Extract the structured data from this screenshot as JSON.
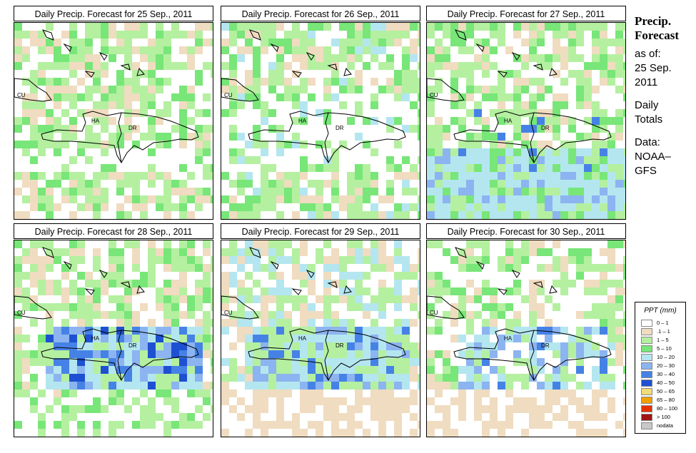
{
  "panels": [
    {
      "title": "Daily Precip. Forecast for  25 Sep., 2011",
      "seed": 11,
      "profile": "a"
    },
    {
      "title": "Daily Precip. Forecast for  26 Sep., 2011",
      "seed": 23,
      "profile": "b"
    },
    {
      "title": "Daily Precip. Forecast for  27 Sep., 2011",
      "seed": 37,
      "profile": "c"
    },
    {
      "title": "Daily Precip. Forecast for  28 Sep., 2011",
      "seed": 41,
      "profile": "d"
    },
    {
      "title": "Daily Precip. Forecast for  29 Sep., 2011",
      "seed": 53,
      "profile": "e"
    },
    {
      "title": "Daily Precip. Forecast for  30 Sep., 2011",
      "seed": 67,
      "profile": "f"
    }
  ],
  "map_labels": [
    "CU",
    "HA",
    "DR"
  ],
  "side": {
    "heading1": "Precip.",
    "heading2": "Forecast",
    "asof": "as of:",
    "date1": "25 Sep.",
    "date2": "2011",
    "daily1": "Daily",
    "daily2": "Totals",
    "data1": "Data:",
    "data2": "NOAA–",
    "data3": "GFS"
  },
  "legend": {
    "title": "PPT (mm)",
    "items": [
      {
        "label": "0 – 1",
        "color": "#ffffff"
      },
      {
        "label": ".1 – 1",
        "color": "#f0dcc0"
      },
      {
        "label": "1 – 5",
        "color": "#b4f0a0"
      },
      {
        "label": "5 – 10",
        "color": "#78e678"
      },
      {
        "label": "10 – 20",
        "color": "#b4e6f0"
      },
      {
        "label": "20 – 30",
        "color": "#8cb4f0"
      },
      {
        "label": "30 – 40",
        "color": "#4682e6"
      },
      {
        "label": "40 – 50",
        "color": "#1e50d2"
      },
      {
        "label": "50 – 65",
        "color": "#f0dc78"
      },
      {
        "label": "65 – 80",
        "color": "#f0a000"
      },
      {
        "label": "80 – 100",
        "color": "#e63200"
      },
      {
        "label": "> 100",
        "color": "#a01414"
      },
      {
        "label": "nodata",
        "color": "#c8c8c8"
      }
    ]
  }
}
